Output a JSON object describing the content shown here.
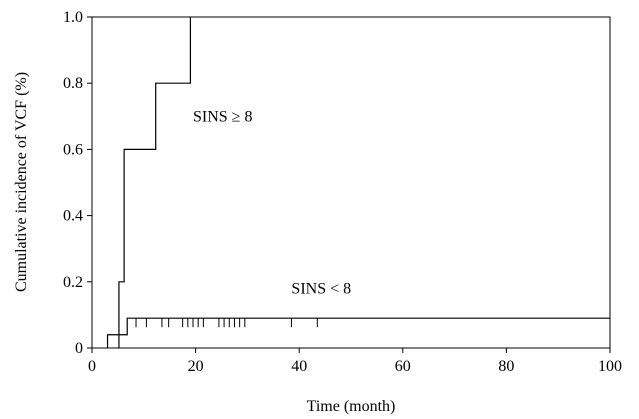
{
  "chart_data": {
    "type": "line",
    "title": "",
    "xlabel": "Time (month)",
    "ylabel": "Cumulative incidence of VCF (%)",
    "xlim": [
      0,
      100
    ],
    "ylim": [
      0,
      1.0
    ],
    "grid": false,
    "legend": "none",
    "x_ticks": [
      0,
      20,
      40,
      60,
      80,
      100
    ],
    "x_tick_labels": [
      "0",
      "20",
      "40",
      "60",
      "80",
      "100"
    ],
    "y_ticks": [
      0,
      0.2,
      0.4,
      0.6,
      0.8,
      1.0
    ],
    "y_tick_labels": [
      "0",
      "0.2",
      "0.4",
      "0.6",
      "0.8",
      "1.0"
    ],
    "series": [
      {
        "name": "SINS ≥ 8",
        "step": true,
        "x": [
          5.2,
          5.2,
          6.2,
          12.3,
          19.0,
          19.0
        ],
        "y": [
          0,
          0.2,
          0.6,
          0.8,
          1.0,
          1.0
        ],
        "censor_x": []
      },
      {
        "name": "SINS < 8",
        "step": true,
        "x": [
          3.0,
          3.0,
          6.8,
          100
        ],
        "y": [
          0,
          0.04,
          0.09,
          0.09
        ],
        "censor_x": [
          8.5,
          10.5,
          13.5,
          14.8,
          17.5,
          18.5,
          19.5,
          20.5,
          21.5,
          24.5,
          25.5,
          26.5,
          27.5,
          28.5,
          29.5,
          38.5,
          43.5
        ]
      }
    ],
    "annotations": [
      {
        "text": "SINS ≥ 8",
        "x": 19.5,
        "y": 0.685
      },
      {
        "text": "SINS < 8",
        "x": 38.5,
        "y": 0.165
      }
    ]
  }
}
